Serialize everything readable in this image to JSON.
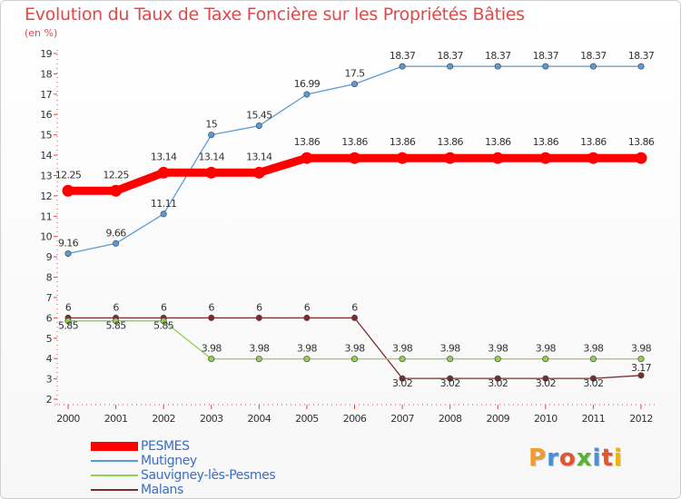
{
  "title": "Evolution du Taux de Taxe Foncière sur les Propriétés Bâties",
  "subtitle": "(en %)",
  "logo": {
    "text": "Proxiti",
    "letter_colors": [
      "#f39c2b",
      "#4a8fd6",
      "#e2532e",
      "#59b233",
      "#4a8fd6",
      "#e2532e",
      "#f0b400"
    ]
  },
  "chart_data": {
    "type": "line",
    "x": [
      "2000",
      "2001",
      "2002",
      "2003",
      "2004",
      "2005",
      "2006",
      "2007",
      "2008",
      "2009",
      "2010",
      "2011",
      "2012"
    ],
    "ylim": [
      2,
      19
    ],
    "yticks": [
      2,
      3,
      4,
      5,
      6,
      7,
      8,
      9,
      10,
      11,
      12,
      13,
      14,
      15,
      16,
      17,
      18,
      19
    ],
    "grid": false,
    "series": [
      {
        "name": "PESMES",
        "color": "#ff0000",
        "values": [
          12.25,
          12.25,
          13.14,
          13.14,
          13.14,
          13.86,
          13.86,
          13.86,
          13.86,
          13.86,
          13.86,
          13.86,
          13.86
        ],
        "labels": [
          "12.25",
          "12.25",
          "13.14",
          "13.14",
          "13.14",
          "13.86",
          "13.86",
          "13.86",
          "13.86",
          "13.86",
          "13.86",
          "13.86",
          "13.86"
        ]
      },
      {
        "name": "Mutigney",
        "color": "#5a9bd5",
        "values": [
          9.16,
          9.66,
          11.11,
          15,
          15.45,
          16.99,
          17.5,
          18.37,
          18.37,
          18.37,
          18.37,
          18.37,
          18.37
        ],
        "labels": [
          "9.16",
          "9.66",
          "11.11",
          "15",
          "15.45",
          "16.99",
          "17.5",
          "18.37",
          "18.37",
          "18.37",
          "18.37",
          "18.37",
          "18.37"
        ]
      },
      {
        "name": "Sauvigney-lès-Pesmes",
        "color": "#92d050",
        "values": [
          5.85,
          5.85,
          5.85,
          3.98,
          3.98,
          3.98,
          3.98,
          3.98,
          3.98,
          3.98,
          3.98,
          3.98,
          3.98
        ],
        "labels": [
          "5.85",
          "5.85",
          "5.85",
          "3.98",
          "3.98",
          "3.98",
          "3.98",
          "3.98",
          "3.98",
          "3.98",
          "3.98",
          "3.98",
          "3.98"
        ]
      },
      {
        "name": "Malans",
        "color": "#7b2c2c",
        "values": [
          6,
          6,
          6,
          6,
          6,
          6,
          6,
          3.02,
          3.02,
          3.02,
          3.02,
          3.02,
          3.17
        ],
        "labels": [
          "6",
          "6",
          "6",
          "6",
          "6",
          "6",
          "6",
          "3.02",
          "3.02",
          "3.02",
          "3.02",
          "3.02",
          "3.17"
        ]
      }
    ]
  }
}
